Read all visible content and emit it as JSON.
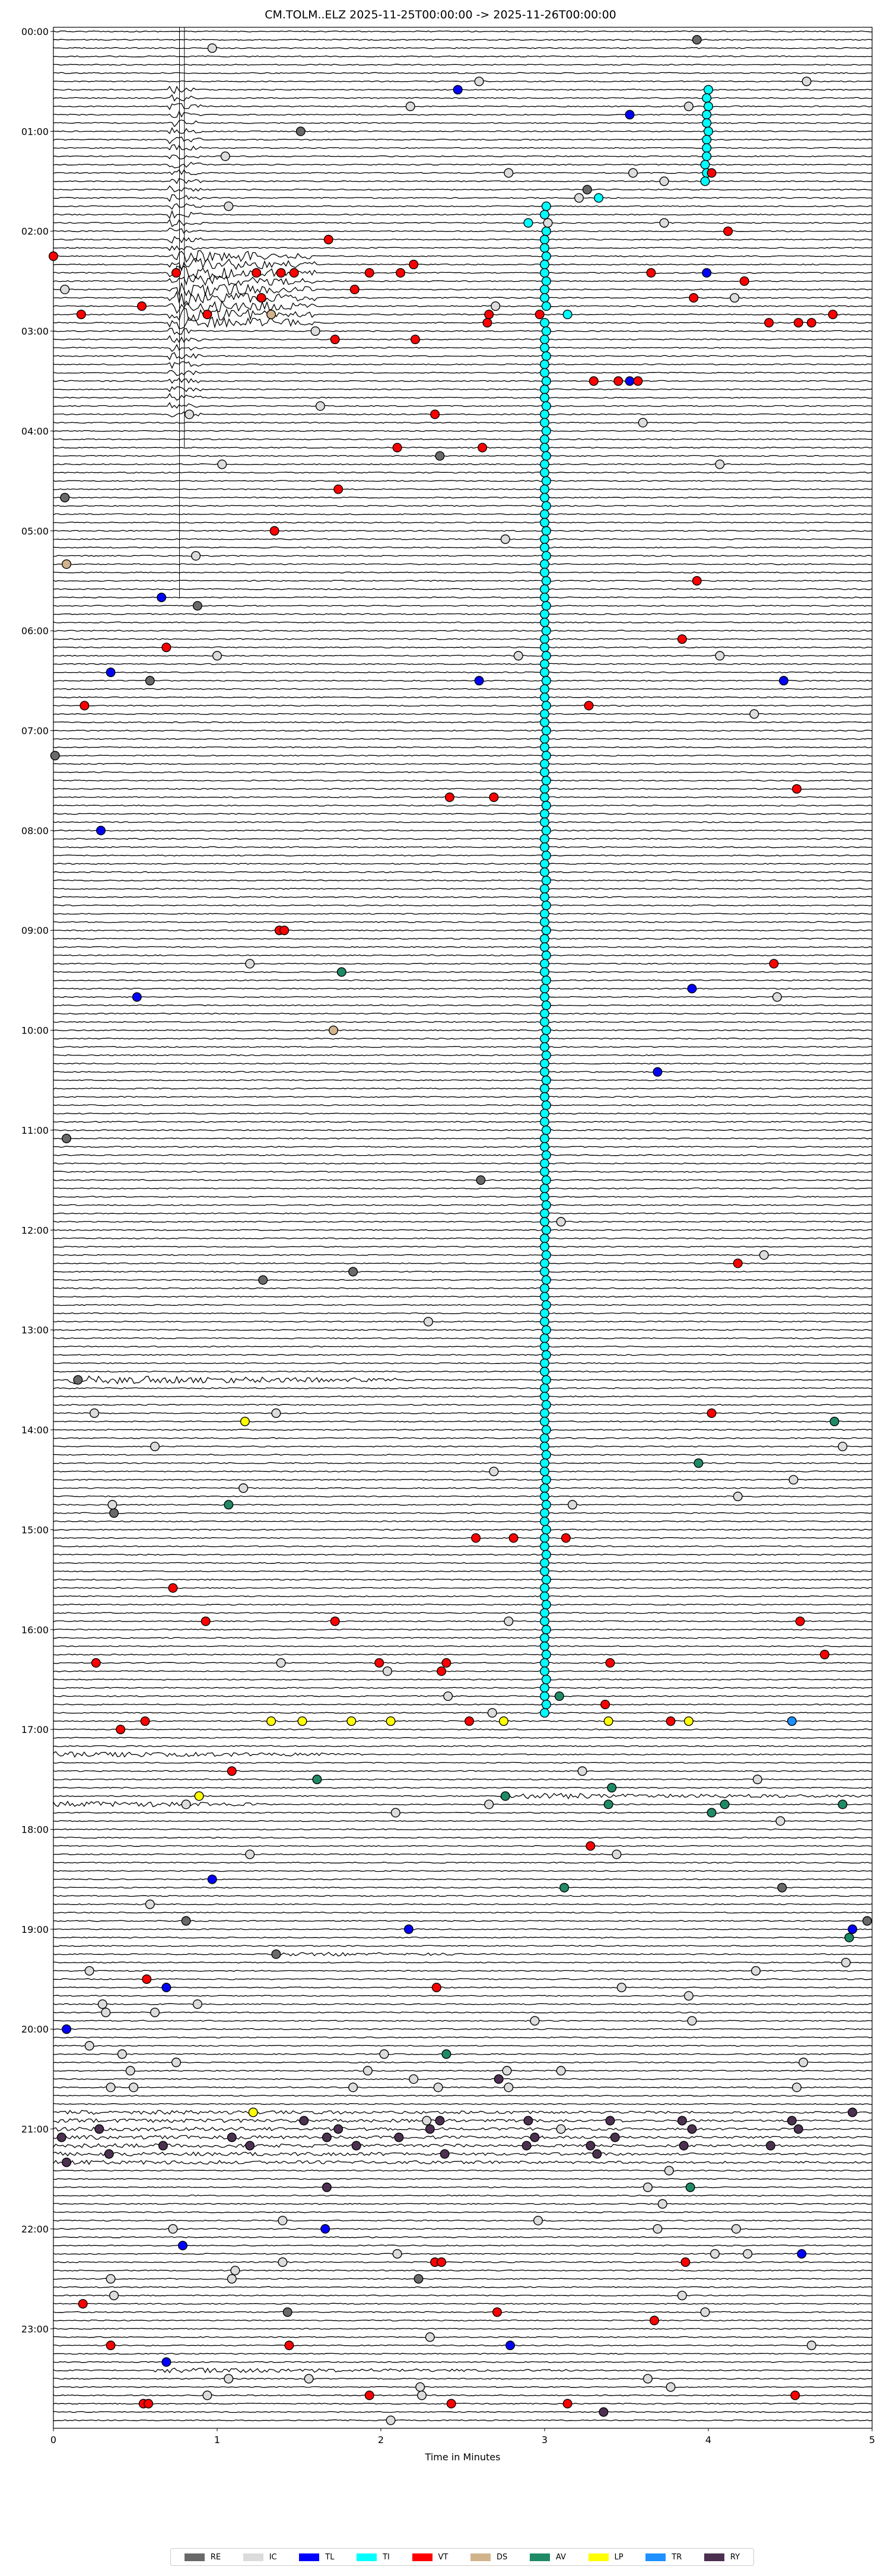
{
  "title": "CM.TOLM..ELZ  2025-11-25T00:00:00 -> 2025-11-26T00:00:00",
  "chart_data": {
    "type": "scatter",
    "title": "CM.TOLM..ELZ  2025-11-25T00:00:00 -> 2025-11-26T00:00:00",
    "xlabel": "Time in Minutes",
    "xlim": [
      0,
      5
    ],
    "x_ticks": [
      "0",
      "1",
      "2",
      "3",
      "4",
      "5"
    ],
    "row_minutes": 5,
    "y_ticks": [
      "00:00",
      "01:00",
      "02:00",
      "03:00",
      "04:00",
      "05:00",
      "06:00",
      "07:00",
      "08:00",
      "09:00",
      "10:00",
      "11:00",
      "12:00",
      "13:00",
      "14:00",
      "15:00",
      "16:00",
      "17:00",
      "18:00",
      "19:00",
      "20:00",
      "21:00",
      "22:00",
      "23:00"
    ],
    "legend_position": "bottom",
    "legend": [
      {
        "code": "RE",
        "color": "#696969"
      },
      {
        "code": "IC",
        "color": "#dcdcdc"
      },
      {
        "code": "TL",
        "color": "#0000ff"
      },
      {
        "code": "TI",
        "color": "#00ffff"
      },
      {
        "code": "VT",
        "color": "#ff0000"
      },
      {
        "code": "DS",
        "color": "#d2b48c"
      },
      {
        "code": "AV",
        "color": "#1f8a66"
      },
      {
        "code": "LP",
        "color": "#ffff00"
      },
      {
        "code": "TR",
        "color": "#1e90ff"
      },
      {
        "code": "RY",
        "color": "#4b3050"
      }
    ],
    "events": {
      "RE": [
        [
          "00:05",
          3.93
        ],
        [
          "01:00",
          1.51
        ],
        [
          "01:35",
          3.26
        ],
        [
          "04:15",
          2.36
        ],
        [
          "04:40",
          0.07
        ],
        [
          "05:45",
          0.88
        ],
        [
          "06:30",
          0.59
        ],
        [
          "07:15",
          0.01
        ],
        [
          "11:05",
          0.08
        ],
        [
          "11:30",
          2.61
        ],
        [
          "12:25",
          1.83
        ],
        [
          "12:30",
          1.28
        ],
        [
          "13:30",
          0.15
        ],
        [
          "14:50",
          0.37
        ],
        [
          "18:35",
          4.45
        ],
        [
          "18:55",
          0.81
        ],
        [
          "18:55",
          4.97
        ],
        [
          "19:15",
          1.36
        ],
        [
          "22:30",
          2.23
        ],
        [
          "22:50",
          1.43
        ]
      ],
      "IC": [
        [
          "00:10",
          0.97
        ],
        [
          "00:30",
          2.6
        ],
        [
          "00:30",
          4.6
        ],
        [
          "00:45",
          2.18
        ],
        [
          "00:45",
          3.88
        ],
        [
          "01:15",
          1.05
        ],
        [
          "01:25",
          2.78
        ],
        [
          "01:25",
          3.54
        ],
        [
          "01:30",
          3.73
        ],
        [
          "01:40",
          3.21
        ],
        [
          "01:45",
          1.07
        ],
        [
          "01:55",
          3.02
        ],
        [
          "01:55",
          3.73
        ],
        [
          "02:35",
          0.07
        ],
        [
          "02:40",
          4.16
        ],
        [
          "02:45",
          2.7
        ],
        [
          "03:00",
          1.6
        ],
        [
          "03:45",
          1.63
        ],
        [
          "03:50",
          0.83
        ],
        [
          "03:55",
          3.6
        ],
        [
          "04:20",
          1.03
        ],
        [
          "04:20",
          4.07
        ],
        [
          "05:05",
          2.76
        ],
        [
          "05:15",
          0.87
        ],
        [
          "06:15",
          1.0
        ],
        [
          "06:15",
          2.84
        ],
        [
          "06:15",
          4.07
        ],
        [
          "06:50",
          4.28
        ],
        [
          "09:20",
          1.2
        ],
        [
          "09:40",
          4.42
        ],
        [
          "11:55",
          3.1
        ],
        [
          "12:15",
          4.34
        ],
        [
          "12:55",
          2.29
        ],
        [
          "13:50",
          0.25
        ],
        [
          "13:50",
          1.36
        ],
        [
          "14:10",
          0.62
        ],
        [
          "14:10",
          4.82
        ],
        [
          "14:25",
          2.69
        ],
        [
          "14:30",
          4.52
        ],
        [
          "14:35",
          1.16
        ],
        [
          "14:40",
          4.18
        ],
        [
          "14:45",
          0.36
        ],
        [
          "14:45",
          3.17
        ],
        [
          "15:55",
          2.78
        ],
        [
          "16:20",
          1.39
        ],
        [
          "16:25",
          2.04
        ],
        [
          "16:40",
          2.41
        ],
        [
          "16:50",
          2.68
        ],
        [
          "17:25",
          3.23
        ],
        [
          "17:30",
          4.3
        ],
        [
          "17:45",
          0.81
        ],
        [
          "17:45",
          2.66
        ],
        [
          "17:50",
          2.09
        ],
        [
          "17:55",
          4.44
        ],
        [
          "18:15",
          1.2
        ],
        [
          "18:15",
          3.44
        ],
        [
          "18:45",
          0.59
        ],
        [
          "19:20",
          4.84
        ],
        [
          "19:25",
          0.22
        ],
        [
          "19:25",
          4.29
        ],
        [
          "19:35",
          3.47
        ],
        [
          "19:40",
          3.88
        ],
        [
          "19:45",
          0.3
        ],
        [
          "19:45",
          0.88
        ],
        [
          "19:50",
          0.32
        ],
        [
          "19:50",
          0.62
        ],
        [
          "19:55",
          2.94
        ],
        [
          "19:55",
          3.9
        ],
        [
          "20:10",
          0.22
        ],
        [
          "20:15",
          0.42
        ],
        [
          "20:15",
          2.02
        ],
        [
          "20:20",
          0.75
        ],
        [
          "20:20",
          4.58
        ],
        [
          "20:25",
          0.47
        ],
        [
          "20:25",
          1.92
        ],
        [
          "20:25",
          2.77
        ],
        [
          "20:25",
          3.1
        ],
        [
          "20:30",
          2.2
        ],
        [
          "20:35",
          0.35
        ],
        [
          "20:35",
          0.49
        ],
        [
          "20:35",
          1.83
        ],
        [
          "20:35",
          2.35
        ],
        [
          "20:35",
          2.78
        ],
        [
          "20:35",
          4.54
        ],
        [
          "20:55",
          2.28
        ],
        [
          "21:00",
          3.1
        ],
        [
          "21:25",
          3.76
        ],
        [
          "21:35",
          3.63
        ],
        [
          "21:45",
          3.72
        ],
        [
          "21:55",
          1.4
        ],
        [
          "21:55",
          2.96
        ],
        [
          "22:00",
          0.73
        ],
        [
          "22:00",
          3.69
        ],
        [
          "22:00",
          4.17
        ],
        [
          "22:15",
          2.1
        ],
        [
          "22:15",
          4.04
        ],
        [
          "22:15",
          4.24
        ],
        [
          "22:20",
          1.4
        ],
        [
          "22:25",
          1.11
        ],
        [
          "22:30",
          0.35
        ],
        [
          "22:30",
          1.09
        ],
        [
          "22:40",
          0.37
        ],
        [
          "22:40",
          3.84
        ],
        [
          "22:50",
          3.98
        ],
        [
          "23:05",
          2.3
        ],
        [
          "23:10",
          4.63
        ],
        [
          "23:30",
          1.07
        ],
        [
          "23:30",
          1.56
        ],
        [
          "23:30",
          3.63
        ],
        [
          "23:35",
          2.24
        ],
        [
          "23:35",
          3.77
        ],
        [
          "23:40",
          0.94
        ],
        [
          "23:40",
          2.25
        ],
        [
          "23:55",
          2.06
        ]
      ],
      "TL": [
        [
          "00:35",
          2.47
        ],
        [
          "00:50",
          3.52
        ],
        [
          "02:25",
          3.99
        ],
        [
          "03:30",
          3.52
        ],
        [
          "05:40",
          0.66
        ],
        [
          "06:25",
          0.35
        ],
        [
          "06:30",
          2.6
        ],
        [
          "06:30",
          4.46
        ],
        [
          "08:00",
          0.29
        ],
        [
          "09:35",
          3.9
        ],
        [
          "09:40",
          0.51
        ],
        [
          "10:25",
          3.69
        ],
        [
          "18:30",
          0.97
        ],
        [
          "19:00",
          2.17
        ],
        [
          "19:00",
          4.88
        ],
        [
          "19:35",
          0.69
        ],
        [
          "20:00",
          0.08
        ],
        [
          "22:00",
          1.66
        ],
        [
          "22:10",
          0.79
        ],
        [
          "22:15",
          4.57
        ],
        [
          "23:10",
          2.79
        ],
        [
          "23:20",
          0.69
        ]
      ],
      "TI": [
        [
          "00:35",
          4.0
        ],
        [
          "00:40",
          3.99
        ],
        [
          "00:45",
          4.0
        ],
        [
          "00:50",
          3.99
        ],
        [
          "00:55",
          3.99
        ],
        [
          "01:00",
          4.0
        ],
        [
          "01:05",
          3.99
        ],
        [
          "01:10",
          3.99
        ],
        [
          "01:15",
          3.99
        ],
        [
          "01:20",
          3.98
        ],
        [
          "01:25",
          3.99
        ],
        [
          "01:30",
          3.98
        ],
        [
          "01:40",
          3.33
        ],
        [
          "01:55",
          2.9
        ],
        [
          "02:50",
          3.14
        ]
      ],
      "TI_run": {
        "from": "01:45",
        "to": "16:50",
        "minute": 3.0,
        "except": [
          "01:55",
          "02:50"
        ]
      },
      "VT": [
        [
          "01:25",
          4.02
        ],
        [
          "02:00",
          4.12
        ],
        [
          "02:05",
          1.68
        ],
        [
          "02:15",
          0.0
        ],
        [
          "02:20",
          2.2
        ],
        [
          "02:25",
          0.75
        ],
        [
          "02:25",
          1.24
        ],
        [
          "02:25",
          1.39
        ],
        [
          "02:25",
          1.47
        ],
        [
          "02:25",
          1.93
        ],
        [
          "02:25",
          2.12
        ],
        [
          "02:25",
          3.65
        ],
        [
          "02:30",
          4.22
        ],
        [
          "02:35",
          1.84
        ],
        [
          "02:40",
          1.27
        ],
        [
          "02:40",
          3.91
        ],
        [
          "02:45",
          0.54
        ],
        [
          "02:50",
          0.17
        ],
        [
          "02:50",
          0.94
        ],
        [
          "02:50",
          2.66
        ],
        [
          "02:50",
          2.97
        ],
        [
          "02:50",
          4.76
        ],
        [
          "02:55",
          2.65
        ],
        [
          "02:55",
          4.37
        ],
        [
          "02:55",
          4.55
        ],
        [
          "02:55",
          4.63
        ],
        [
          "03:05",
          1.72
        ],
        [
          "03:05",
          2.21
        ],
        [
          "03:30",
          3.3
        ],
        [
          "03:30",
          3.45
        ],
        [
          "03:30",
          3.57
        ],
        [
          "03:50",
          2.33
        ],
        [
          "04:10",
          2.1
        ],
        [
          "04:10",
          2.62
        ],
        [
          "04:35",
          1.74
        ],
        [
          "05:00",
          1.35
        ],
        [
          "05:30",
          3.93
        ],
        [
          "06:05",
          3.84
        ],
        [
          "06:10",
          0.69
        ],
        [
          "06:45",
          0.19
        ],
        [
          "06:45",
          3.27
        ],
        [
          "07:35",
          4.54
        ],
        [
          "07:40",
          2.42
        ],
        [
          "07:40",
          2.69
        ],
        [
          "09:00",
          1.38
        ],
        [
          "09:00",
          1.41
        ],
        [
          "09:20",
          4.4
        ],
        [
          "12:20",
          4.18
        ],
        [
          "13:50",
          4.02
        ],
        [
          "15:05",
          2.58
        ],
        [
          "15:05",
          2.81
        ],
        [
          "15:05",
          3.13
        ],
        [
          "15:35",
          0.73
        ],
        [
          "15:55",
          0.93
        ],
        [
          "15:55",
          1.72
        ],
        [
          "15:55",
          4.56
        ],
        [
          "16:15",
          4.71
        ],
        [
          "16:20",
          0.26
        ],
        [
          "16:20",
          1.99
        ],
        [
          "16:20",
          2.4
        ],
        [
          "16:20",
          3.4
        ],
        [
          "16:25",
          2.37
        ],
        [
          "16:45",
          3.37
        ],
        [
          "16:55",
          0.56
        ],
        [
          "16:55",
          2.54
        ],
        [
          "16:55",
          3.77
        ],
        [
          "17:00",
          0.41
        ],
        [
          "17:25",
          1.09
        ],
        [
          "18:10",
          3.28
        ],
        [
          "19:30",
          0.57
        ],
        [
          "19:35",
          2.34
        ],
        [
          "22:20",
          2.33
        ],
        [
          "22:20",
          2.37
        ],
        [
          "22:20",
          3.86
        ],
        [
          "22:45",
          0.18
        ],
        [
          "22:50",
          2.71
        ],
        [
          "22:55",
          3.67
        ],
        [
          "23:10",
          0.35
        ],
        [
          "23:10",
          1.44
        ],
        [
          "23:40",
          1.93
        ],
        [
          "23:40",
          4.53
        ],
        [
          "23:45",
          0.55
        ],
        [
          "23:45",
          0.58
        ],
        [
          "23:45",
          2.43
        ],
        [
          "23:45",
          3.14
        ]
      ],
      "DS": [
        [
          "02:50",
          1.33
        ],
        [
          "05:20",
          0.08
        ],
        [
          "10:00",
          1.71
        ]
      ],
      "AV": [
        [
          "09:25",
          1.76
        ],
        [
          "13:55",
          4.77
        ],
        [
          "14:20",
          3.94
        ],
        [
          "14:45",
          1.07
        ],
        [
          "16:40",
          3.09
        ],
        [
          "17:30",
          1.61
        ],
        [
          "17:35",
          3.41
        ],
        [
          "17:40",
          2.76
        ],
        [
          "17:45",
          3.39
        ],
        [
          "17:45",
          4.1
        ],
        [
          "17:45",
          4.82
        ],
        [
          "17:50",
          4.02
        ],
        [
          "18:35",
          3.12
        ],
        [
          "19:05",
          4.86
        ],
        [
          "20:15",
          2.4
        ],
        [
          "21:35",
          3.89
        ]
      ],
      "LP": [
        [
          "13:55",
          1.17
        ],
        [
          "16:55",
          1.33
        ],
        [
          "16:55",
          1.52
        ],
        [
          "16:55",
          1.82
        ],
        [
          "16:55",
          2.06
        ],
        [
          "16:55",
          2.75
        ],
        [
          "16:55",
          3.39
        ],
        [
          "16:55",
          3.88
        ],
        [
          "17:40",
          0.89
        ],
        [
          "20:50",
          1.22
        ]
      ],
      "TR": [
        [
          "16:55",
          4.51
        ]
      ],
      "RY": [
        [
          "20:30",
          2.72
        ],
        [
          "20:50",
          4.88
        ],
        [
          "20:55",
          1.53
        ],
        [
          "20:55",
          2.36
        ],
        [
          "20:55",
          2.9
        ],
        [
          "20:55",
          3.4
        ],
        [
          "20:55",
          3.84
        ],
        [
          "20:55",
          4.51
        ],
        [
          "21:00",
          0.28
        ],
        [
          "21:00",
          1.74
        ],
        [
          "21:00",
          2.3
        ],
        [
          "21:00",
          3.9
        ],
        [
          "21:00",
          4.55
        ],
        [
          "21:05",
          0.05
        ],
        [
          "21:05",
          1.09
        ],
        [
          "21:05",
          1.67
        ],
        [
          "21:05",
          2.11
        ],
        [
          "21:05",
          2.94
        ],
        [
          "21:05",
          3.43
        ],
        [
          "21:10",
          0.67
        ],
        [
          "21:10",
          1.2
        ],
        [
          "21:10",
          1.85
        ],
        [
          "21:10",
          2.89
        ],
        [
          "21:10",
          3.28
        ],
        [
          "21:10",
          3.85
        ],
        [
          "21:10",
          4.38
        ],
        [
          "21:15",
          0.34
        ],
        [
          "21:15",
          2.39
        ],
        [
          "21:15",
          3.32
        ],
        [
          "21:20",
          0.08
        ],
        [
          "21:35",
          1.67
        ],
        [
          "23:50",
          3.36
        ]
      ]
    }
  }
}
